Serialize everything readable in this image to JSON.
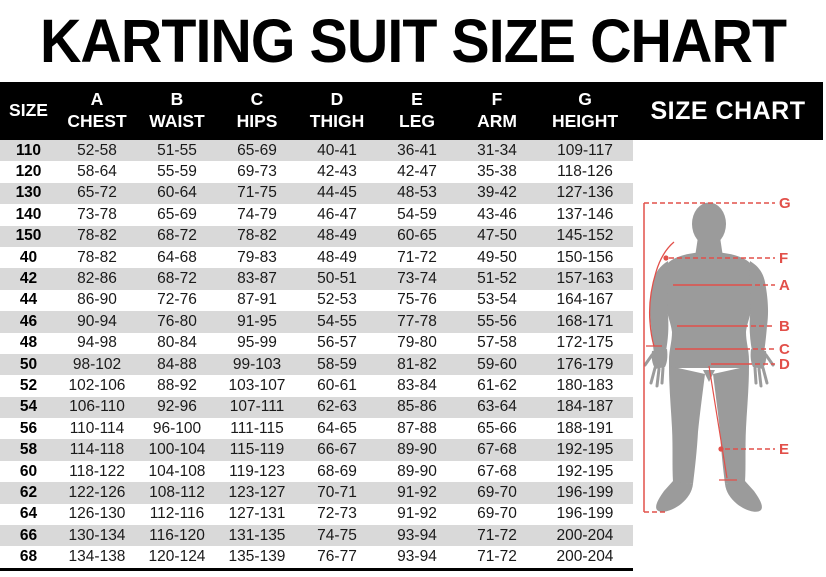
{
  "page": {
    "title": "KARTING SUIT SIZE CHART"
  },
  "table": {
    "size_header": "SIZE",
    "columns": [
      {
        "letter": "A",
        "name": "CHEST"
      },
      {
        "letter": "B",
        "name": "WAIST"
      },
      {
        "letter": "C",
        "name": "HIPS"
      },
      {
        "letter": "D",
        "name": "THIGH"
      },
      {
        "letter": "E",
        "name": "LEG"
      },
      {
        "letter": "F",
        "name": "ARM"
      },
      {
        "letter": "G",
        "name": "HEIGHT"
      }
    ],
    "rows": [
      {
        "size": "110",
        "values": [
          "52-58",
          "51-55",
          "65-69",
          "40-41",
          "36-41",
          "31-34",
          "109-117"
        ]
      },
      {
        "size": "120",
        "values": [
          "58-64",
          "55-59",
          "69-73",
          "42-43",
          "42-47",
          "35-38",
          "118-126"
        ]
      },
      {
        "size": "130",
        "values": [
          "65-72",
          "60-64",
          "71-75",
          "44-45",
          "48-53",
          "39-42",
          "127-136"
        ]
      },
      {
        "size": "140",
        "values": [
          "73-78",
          "65-69",
          "74-79",
          "46-47",
          "54-59",
          "43-46",
          "137-146"
        ]
      },
      {
        "size": "150",
        "values": [
          "78-82",
          "68-72",
          "78-82",
          "48-49",
          "60-65",
          "47-50",
          "145-152"
        ]
      },
      {
        "size": "40",
        "values": [
          "78-82",
          "64-68",
          "79-83",
          "48-49",
          "71-72",
          "49-50",
          "150-156"
        ]
      },
      {
        "size": "42",
        "values": [
          "82-86",
          "68-72",
          "83-87",
          "50-51",
          "73-74",
          "51-52",
          "157-163"
        ]
      },
      {
        "size": "44",
        "values": [
          "86-90",
          "72-76",
          "87-91",
          "52-53",
          "75-76",
          "53-54",
          "164-167"
        ]
      },
      {
        "size": "46",
        "values": [
          "90-94",
          "76-80",
          "91-95",
          "54-55",
          "77-78",
          "55-56",
          "168-171"
        ]
      },
      {
        "size": "48",
        "values": [
          "94-98",
          "80-84",
          "95-99",
          "56-57",
          "79-80",
          "57-58",
          "172-175"
        ]
      },
      {
        "size": "50",
        "values": [
          "98-102",
          "84-88",
          "99-103",
          "58-59",
          "81-82",
          "59-60",
          "176-179"
        ]
      },
      {
        "size": "52",
        "values": [
          "102-106",
          "88-92",
          "103-107",
          "60-61",
          "83-84",
          "61-62",
          "180-183"
        ]
      },
      {
        "size": "54",
        "values": [
          "106-110",
          "92-96",
          "107-111",
          "62-63",
          "85-86",
          "63-64",
          "184-187"
        ]
      },
      {
        "size": "56",
        "values": [
          "110-114",
          "96-100",
          "111-115",
          "64-65",
          "87-88",
          "65-66",
          "188-191"
        ]
      },
      {
        "size": "58",
        "values": [
          "114-118",
          "100-104",
          "115-119",
          "66-67",
          "89-90",
          "67-68",
          "192-195"
        ]
      },
      {
        "size": "60",
        "values": [
          "118-122",
          "104-108",
          "119-123",
          "68-69",
          "89-90",
          "67-68",
          "192-195"
        ]
      },
      {
        "size": "62",
        "values": [
          "122-126",
          "108-112",
          "123-127",
          "70-71",
          "91-92",
          "69-70",
          "196-199"
        ]
      },
      {
        "size": "64",
        "values": [
          "126-130",
          "112-116",
          "127-131",
          "72-73",
          "91-92",
          "69-70",
          "196-199"
        ]
      },
      {
        "size": "66",
        "values": [
          "130-134",
          "116-120",
          "131-135",
          "74-75",
          "93-94",
          "71-72",
          "200-204"
        ]
      },
      {
        "size": "68",
        "values": [
          "134-138",
          "120-124",
          "135-139",
          "76-77",
          "93-94",
          "71-72",
          "200-204"
        ]
      }
    ]
  },
  "side_panel": {
    "header": "SIZE CHART",
    "figure": {
      "labels": [
        "G",
        "F",
        "A",
        "B",
        "C",
        "D",
        "E"
      ]
    }
  },
  "colors": {
    "header_bg": "#000000",
    "header_text": "#ffffff",
    "row_stripe": "#d9d9d9",
    "measure_red": "#e2504a",
    "silhouette_gray": "#9b9b9b"
  }
}
